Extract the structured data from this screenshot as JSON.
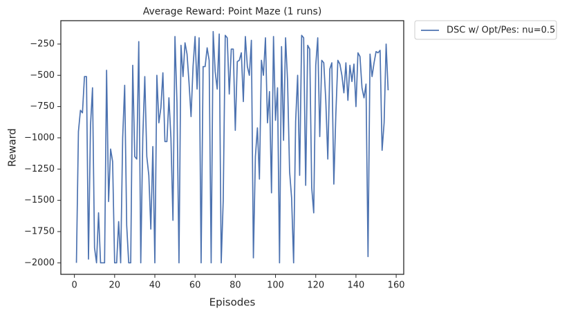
{
  "chart_data": {
    "type": "line",
    "title": "Average Reward: Point Maze (1 runs)",
    "xlabel": "Episodes",
    "ylabel": "Reward",
    "x": [
      1,
      2,
      3,
      4,
      5,
      6,
      7,
      8,
      9,
      10,
      11,
      12,
      13,
      14,
      15,
      16,
      17,
      18,
      19,
      20,
      21,
      22,
      23,
      24,
      25,
      26,
      27,
      28,
      29,
      30,
      31,
      32,
      33,
      34,
      35,
      36,
      37,
      38,
      39,
      40,
      41,
      42,
      43,
      44,
      45,
      46,
      47,
      48,
      49,
      50,
      51,
      52,
      53,
      54,
      55,
      56,
      57,
      58,
      59,
      60,
      61,
      62,
      63,
      64,
      65,
      66,
      67,
      68,
      69,
      70,
      71,
      72,
      73,
      74,
      75,
      76,
      77,
      78,
      79,
      80,
      81,
      82,
      83,
      84,
      85,
      86,
      87,
      88,
      89,
      90,
      91,
      92,
      93,
      94,
      95,
      96,
      97,
      98,
      99,
      100,
      101,
      102,
      103,
      104,
      105,
      106,
      107,
      108,
      109,
      110,
      111,
      112,
      113,
      114,
      115,
      116,
      117,
      118,
      119,
      120,
      121,
      122,
      123,
      124,
      125,
      126,
      127,
      128,
      129,
      130,
      131,
      132,
      133,
      134,
      135,
      136,
      137,
      138,
      139,
      140,
      141,
      142,
      143,
      144,
      145,
      146,
      147,
      148,
      149,
      150,
      151,
      152,
      153,
      154,
      155,
      156
    ],
    "series": [
      {
        "name": "DSC w/ Opt/Pes: nu=0.5",
        "color": "#4c72b0",
        "values": [
          -2000,
          -950,
          -780,
          -800,
          -510,
          -510,
          -1970,
          -900,
          -600,
          -1880,
          -2000,
          -1600,
          -2000,
          -2000,
          -2000,
          -460,
          -1510,
          -1090,
          -1190,
          -2000,
          -2000,
          -1670,
          -2000,
          -1000,
          -580,
          -1700,
          -2000,
          -2000,
          -420,
          -1150,
          -1170,
          -230,
          -2000,
          -1000,
          -510,
          -1150,
          -1300,
          -1730,
          -1070,
          -2000,
          -500,
          -880,
          -760,
          -480,
          -1030,
          -1030,
          -680,
          -1000,
          -1660,
          -190,
          -720,
          -2000,
          -260,
          -510,
          -240,
          -330,
          -560,
          -830,
          -430,
          -190,
          -610,
          -200,
          -2000,
          -430,
          -430,
          -280,
          -380,
          -2000,
          -150,
          -470,
          -610,
          -170,
          -2000,
          -1500,
          -180,
          -200,
          -650,
          -290,
          -290,
          -940,
          -390,
          -380,
          -320,
          -710,
          -190,
          -430,
          -500,
          -220,
          -1960,
          -1150,
          -920,
          -1330,
          -380,
          -500,
          -200,
          -880,
          -630,
          -1440,
          -190,
          -860,
          -600,
          -2000,
          -270,
          -1020,
          -200,
          -550,
          -1270,
          -1480,
          -2000,
          -870,
          -500,
          -1300,
          -180,
          -200,
          -1380,
          -260,
          -290,
          -1400,
          -1600,
          -420,
          -200,
          -990,
          -380,
          -400,
          -700,
          -1170,
          -450,
          -400,
          -1370,
          -810,
          -380,
          -410,
          -500,
          -640,
          -400,
          -700,
          -420,
          -550,
          -410,
          -750,
          -320,
          -350,
          -600,
          -680,
          -570,
          -1950,
          -330,
          -510,
          -400,
          -310,
          -320,
          -300,
          -1100,
          -880,
          -250,
          -620
        ]
      }
    ],
    "xlim": [
      -6.75,
      163.75
    ],
    "ylim": [
      -2092,
      -63
    ],
    "xticks": [
      0,
      20,
      40,
      60,
      80,
      100,
      120,
      140,
      160
    ],
    "yticks": [
      {
        "value": -2000,
        "label": "−2000"
      },
      {
        "value": -1750,
        "label": "−1750"
      },
      {
        "value": -1500,
        "label": "−1500"
      },
      {
        "value": -1250,
        "label": "−1250"
      },
      {
        "value": -1000,
        "label": "−1000"
      },
      {
        "value": -750,
        "label": "−750"
      },
      {
        "value": -500,
        "label": "−500"
      },
      {
        "value": -250,
        "label": "−250"
      }
    ],
    "grid": false,
    "legend": "outside upper right"
  }
}
